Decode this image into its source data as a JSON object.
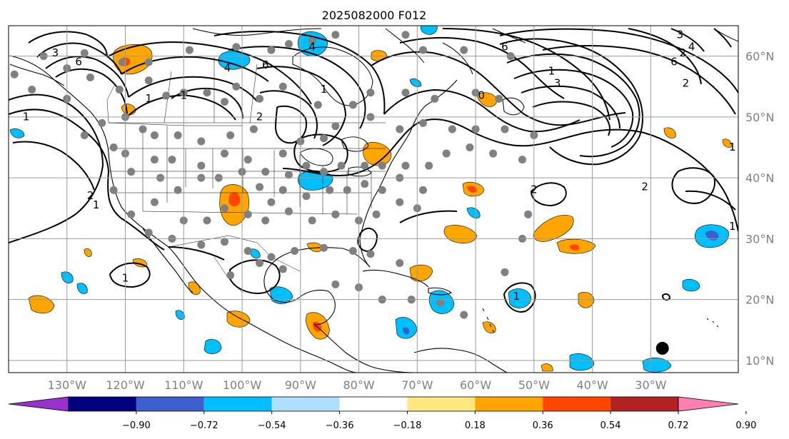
{
  "title": "2025082000 F012",
  "map": {
    "lon_range": [
      -140,
      -15
    ],
    "lat_range": [
      8,
      65
    ],
    "lon_labels": [
      {
        "lon": -130,
        "text": "130°W"
      },
      {
        "lon": -120,
        "text": "120°W"
      },
      {
        "lon": -110,
        "text": "110°W"
      },
      {
        "lon": -100,
        "text": "100°W"
      },
      {
        "lon": -90,
        "text": "90°W"
      },
      {
        "lon": -80,
        "text": "80°W"
      },
      {
        "lon": -70,
        "text": "70°W"
      },
      {
        "lon": -60,
        "text": "60°W"
      },
      {
        "lon": -50,
        "text": "50°W"
      },
      {
        "lon": -40,
        "text": "40°W"
      },
      {
        "lon": -30,
        "text": "30°W"
      }
    ],
    "lat_labels": [
      {
        "lat": 60,
        "text": "60°N"
      },
      {
        "lat": 50,
        "text": "50°N"
      },
      {
        "lat": 40,
        "text": "40°N"
      },
      {
        "lat": 30,
        "text": "30°N"
      },
      {
        "lat": 20,
        "text": "20°N"
      },
      {
        "lat": 10,
        "text": "10°N"
      }
    ],
    "contour_labels": [
      {
        "text": "3",
        "lon": -132,
        "lat": 60.5
      },
      {
        "text": "6",
        "lon": -128,
        "lat": 59
      },
      {
        "text": "1",
        "lon": -137,
        "lat": 50
      },
      {
        "text": "2",
        "lon": -126,
        "lat": 37
      },
      {
        "text": "1",
        "lon": -125,
        "lat": 35.5
      },
      {
        "text": "4",
        "lon": -102.5,
        "lat": 58
      },
      {
        "text": "6",
        "lon": -96,
        "lat": 58.5
      },
      {
        "text": "1",
        "lon": -116,
        "lat": 53
      },
      {
        "text": "1",
        "lon": -110,
        "lat": 53.5
      },
      {
        "text": "1",
        "lon": -86,
        "lat": 54.5
      },
      {
        "text": "2",
        "lon": -97,
        "lat": 50
      },
      {
        "text": "4",
        "lon": -88,
        "lat": 61.5
      },
      {
        "text": "6",
        "lon": -55,
        "lat": 61.5
      },
      {
        "text": "0",
        "lon": -59,
        "lat": 53.5
      },
      {
        "text": "1",
        "lon": -47,
        "lat": 57.5
      },
      {
        "text": "3",
        "lon": -46,
        "lat": 55.5
      },
      {
        "text": "6",
        "lon": -26,
        "lat": 59
      },
      {
        "text": "2",
        "lon": -24,
        "lat": 55.5
      },
      {
        "text": "3",
        "lon": -25,
        "lat": 63.5
      },
      {
        "text": "4",
        "lon": -23,
        "lat": 61.5
      },
      {
        "text": "2",
        "lon": -24.5,
        "lat": 60.5
      },
      {
        "text": "2",
        "lon": -50,
        "lat": 38
      },
      {
        "text": "2",
        "lon": -31,
        "lat": 38.5
      },
      {
        "text": "1",
        "lon": -16,
        "lat": 32
      },
      {
        "text": "1",
        "lon": -120,
        "lat": 23.5
      },
      {
        "text": "1",
        "lon": -53,
        "lat": 20.5
      },
      {
        "text": "1",
        "lon": -16,
        "lat": 45
      }
    ],
    "station_markers": [
      [
        -139,
        57
      ],
      [
        -134,
        60
      ],
      [
        -130,
        58
      ],
      [
        -127,
        60.5
      ],
      [
        -120.5,
        59
      ],
      [
        -116,
        59
      ],
      [
        -109,
        61
      ],
      [
        -101,
        61.5
      ],
      [
        -95,
        61
      ],
      [
        -92,
        62
      ],
      [
        -88,
        62.5
      ],
      [
        -84,
        63.5
      ],
      [
        -72,
        63.5
      ],
      [
        -69,
        61
      ],
      [
        -62,
        61
      ],
      [
        -54,
        60
      ],
      [
        -136,
        54.5
      ],
      [
        -130,
        53
      ],
      [
        -126,
        56.5
      ],
      [
        -121,
        54.5
      ],
      [
        -116,
        56
      ],
      [
        -113,
        53.5
      ],
      [
        -110,
        54
      ],
      [
        -106,
        54
      ],
      [
        -103,
        52.5
      ],
      [
        -101,
        55
      ],
      [
        -97,
        53
      ],
      [
        -93,
        55
      ],
      [
        -87,
        52
      ],
      [
        -81,
        52
      ],
      [
        -78,
        54
      ],
      [
        -72,
        54
      ],
      [
        -67,
        53
      ],
      [
        -60,
        54
      ],
      [
        -56,
        53
      ],
      [
        -127,
        47
      ],
      [
        -124,
        49
      ],
      [
        -122,
        45
      ],
      [
        -120,
        50
      ],
      [
        -117,
        48
      ],
      [
        -115,
        47
      ],
      [
        -111,
        47
      ],
      [
        -107,
        46
      ],
      [
        -102,
        47
      ],
      [
        -98,
        48
      ],
      [
        -93,
        44
      ],
      [
        -90,
        46
      ],
      [
        -86,
        46.5
      ],
      [
        -84,
        48.5
      ],
      [
        -78,
        50
      ],
      [
        -73,
        48
      ],
      [
        -69,
        49
      ],
      [
        -64,
        48
      ],
      [
        -60,
        48
      ],
      [
        -55,
        48
      ],
      [
        -50,
        47
      ],
      [
        -120,
        44
      ],
      [
        -115,
        43
      ],
      [
        -112,
        43
      ],
      [
        -107,
        42
      ],
      [
        -103,
        44
      ],
      [
        -99,
        43
      ],
      [
        -96,
        41
      ],
      [
        -92,
        40.5
      ],
      [
        -89,
        42
      ],
      [
        -86,
        41
      ],
      [
        -83,
        42
      ],
      [
        -79,
        42
      ],
      [
        -76,
        42
      ],
      [
        -72,
        42
      ],
      [
        -68,
        42
      ],
      [
        -65,
        44
      ],
      [
        -61,
        45
      ],
      [
        -57,
        44
      ],
      [
        -52,
        43
      ],
      [
        -122,
        38
      ],
      [
        -119,
        41
      ],
      [
        -114,
        40
      ],
      [
        -111,
        38
      ],
      [
        -107,
        40
      ],
      [
        -104,
        40
      ],
      [
        -100,
        41
      ],
      [
        -97,
        38.5
      ],
      [
        -95,
        36
      ],
      [
        -93,
        38
      ],
      [
        -89,
        37
      ],
      [
        -85,
        38
      ],
      [
        -82,
        38
      ],
      [
        -79,
        39
      ],
      [
        -76,
        38
      ],
      [
        -73,
        40
      ],
      [
        -69,
        38
      ],
      [
        -119,
        34
      ],
      [
        -115,
        36
      ],
      [
        -110,
        33
      ],
      [
        -106,
        33
      ],
      [
        -103,
        35
      ],
      [
        -99,
        34
      ],
      [
        -96,
        33
      ],
      [
        -92,
        34.5
      ],
      [
        -88,
        33
      ],
      [
        -84,
        34
      ],
      [
        -80,
        33
      ],
      [
        -77,
        34
      ],
      [
        -73,
        36
      ],
      [
        -70,
        35
      ],
      [
        -116,
        31
      ],
      [
        -112,
        30
      ],
      [
        -107,
        29
      ],
      [
        -103,
        29.5
      ],
      [
        -99,
        28
      ],
      [
        -95,
        27
      ],
      [
        -91,
        28
      ],
      [
        -86,
        28.5
      ],
      [
        -81,
        28
      ],
      [
        -78,
        27.5
      ],
      [
        -73,
        26
      ],
      [
        -102,
        24
      ],
      [
        -97,
        26
      ],
      [
        -93,
        25
      ],
      [
        -84,
        22.5
      ],
      [
        -80,
        22
      ],
      [
        -76,
        20
      ],
      [
        -71,
        20
      ],
      [
        -66,
        19.5
      ],
      [
        -62,
        17.5
      ],
      [
        -55,
        24.5
      ],
      [
        -52,
        30
      ],
      [
        -51,
        34
      ]
    ],
    "large_marker": {
      "lon": -28,
      "lat": 12
    }
  },
  "colorbar": {
    "colors": [
      "#9932cc",
      "#000080",
      "#3b5fcd",
      "#00bfff",
      "#aedfff",
      "#ffffff",
      "#ffe680",
      "#ffa500",
      "#ff4500",
      "#b22222",
      "#ff80b0"
    ],
    "ticks": [
      "−0.90",
      "−0.72",
      "−0.54",
      "−0.36",
      "−0.18",
      "0.18",
      "0.36",
      "0.54",
      "0.72",
      "0.90"
    ]
  }
}
